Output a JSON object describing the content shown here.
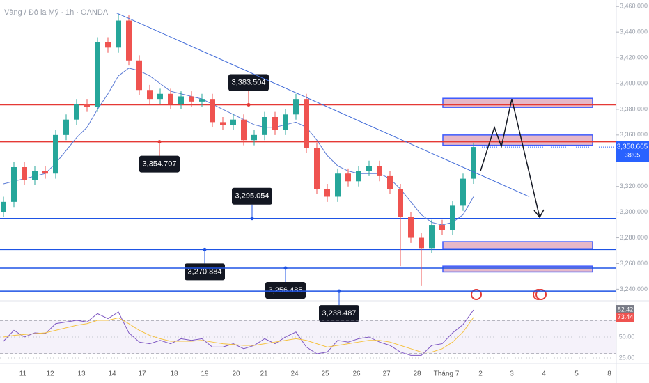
{
  "chart_data": {
    "type": "candlestick",
    "title": "Vàng / Đô la Mỹ · 1h · OANDA",
    "x_labels": [
      "11",
      "12",
      "13",
      "14",
      "17",
      "18",
      "19",
      "20",
      "21",
      "24",
      "25",
      "26",
      "27",
      "28",
      "Tháng 7",
      "2",
      "3",
      "4",
      "5",
      "8"
    ],
    "open": [
      3300,
      3308,
      3335,
      3325,
      3332,
      3330,
      3360,
      3372,
      3384,
      3382,
      3432,
      3428,
      3449,
      3418,
      3395,
      3388,
      3392,
      3384,
      3390,
      3386,
      3388,
      3370,
      3368,
      3372,
      3356,
      3360,
      3374,
      3364,
      3376,
      3388,
      3350,
      3318,
      3312,
      3330,
      3324,
      3332,
      3336,
      3328,
      3318,
      3296,
      3280,
      3272,
      3290,
      3286,
      3305,
      3326
    ],
    "high": [
      3312,
      3339,
      3339,
      3336,
      3336,
      3364,
      3376,
      3388,
      3388,
      3436,
      3436,
      3454,
      3453,
      3422,
      3399,
      3396,
      3396,
      3394,
      3394,
      3392,
      3392,
      3374,
      3376,
      3376,
      3364,
      3378,
      3378,
      3380,
      3392,
      3392,
      3354,
      3322,
      3334,
      3334,
      3336,
      3340,
      3340,
      3332,
      3322,
      3300,
      3284,
      3294,
      3294,
      3309,
      3330,
      3354
    ],
    "low": [
      3296,
      3304,
      3321,
      3321,
      3326,
      3326,
      3356,
      3368,
      3378,
      3378,
      3424,
      3424,
      3414,
      3391,
      3384,
      3384,
      3380,
      3380,
      3382,
      3382,
      3366,
      3364,
      3364,
      3352,
      3352,
      3356,
      3360,
      3360,
      3372,
      3346,
      3314,
      3308,
      3308,
      3320,
      3320,
      3328,
      3324,
      3314,
      3258,
      3276,
      3243,
      3268,
      3282,
      3282,
      3301,
      3322
    ],
    "close": [
      3308,
      3335,
      3325,
      3332,
      3330,
      3360,
      3372,
      3384,
      3382,
      3432,
      3428,
      3449,
      3418,
      3395,
      3388,
      3392,
      3384,
      3390,
      3386,
      3388,
      3370,
      3368,
      3372,
      3356,
      3360,
      3374,
      3364,
      3376,
      3388,
      3350,
      3318,
      3312,
      3330,
      3324,
      3332,
      3336,
      3328,
      3318,
      3296,
      3280,
      3272,
      3290,
      3286,
      3305,
      3326,
      3350.665
    ],
    "up_color": "#26a69a",
    "down_color": "#ef5350",
    "moving_average": [
      3322,
      3324,
      3326,
      3328,
      3330,
      3338,
      3348,
      3358,
      3366,
      3380,
      3392,
      3406,
      3412,
      3410,
      3406,
      3400,
      3394,
      3392,
      3390,
      3388,
      3384,
      3380,
      3376,
      3372,
      3368,
      3366,
      3366,
      3368,
      3370,
      3366,
      3356,
      3344,
      3336,
      3332,
      3330,
      3330,
      3330,
      3326,
      3318,
      3308,
      3298,
      3292,
      3290,
      3292,
      3298,
      3312
    ],
    "ma_color": "#5b7bd5",
    "ylim": [
      3231,
      3465
    ],
    "yticks": [
      {
        "value": 3460,
        "label": "3,460.000"
      },
      {
        "value": 3440,
        "label": "3,440.000"
      },
      {
        "value": 3420,
        "label": "3,420.000"
      },
      {
        "value": 3400,
        "label": "3,400.000"
      },
      {
        "value": 3380,
        "label": "3,380.000"
      },
      {
        "value": 3360,
        "label": "3,360.000"
      },
      {
        "value": 3320,
        "label": "3,320.000"
      },
      {
        "value": 3300,
        "label": "3,300.000"
      },
      {
        "value": 3280,
        "label": "3,280.000"
      },
      {
        "value": 3260,
        "label": "3,260.000"
      },
      {
        "value": 3240,
        "label": "3,240.000"
      }
    ],
    "grid": false,
    "last_price": {
      "value": 3350.665,
      "label": "3,350.665",
      "countdown": "38:05",
      "color": "#2962ff"
    },
    "levels": [
      {
        "value": 3383.504,
        "label": "3,383.504",
        "color": "#e53935"
      },
      {
        "value": 3354.707,
        "label": "3,354.707",
        "color": "#e53935"
      },
      {
        "value": 3295.054,
        "label": "3,295.054",
        "color": "#1e53e5"
      },
      {
        "value": 3270.884,
        "label": "3,270.884",
        "color": "#1e53e5"
      },
      {
        "value": 3256.485,
        "label": "3,256.485",
        "color": "#1e53e5"
      },
      {
        "value": 3238.487,
        "label": "3,238.487",
        "color": "#1e53e5"
      }
    ],
    "zones": [
      {
        "low": 3381.5,
        "high": 3388.5
      },
      {
        "low": 3352,
        "high": 3360
      },
      {
        "low": 3271.5,
        "high": 3277
      },
      {
        "low": 3253.5,
        "high": 3258
      }
    ],
    "zone_color": "#e6b8c8",
    "trendline": [
      3455,
      3312
    ],
    "projection": [
      3332,
      3366,
      3351,
      3388,
      3296
    ],
    "rsi": {
      "values": [
        45,
        58,
        50,
        55,
        54,
        66,
        68,
        70,
        68,
        78,
        72,
        80,
        55,
        44,
        42,
        46,
        42,
        48,
        46,
        48,
        38,
        38,
        42,
        36,
        40,
        48,
        42,
        50,
        56,
        38,
        30,
        32,
        46,
        44,
        48,
        50,
        44,
        40,
        32,
        28,
        28,
        40,
        42,
        55,
        65,
        82.42
      ],
      "ma": [
        50,
        52,
        53,
        54,
        55,
        58,
        61,
        64,
        66,
        70,
        70,
        73,
        66,
        58,
        52,
        48,
        45,
        45,
        45,
        46,
        44,
        42,
        41,
        40,
        40,
        42,
        44,
        46,
        48,
        46,
        42,
        38,
        40,
        42,
        44,
        46,
        46,
        44,
        40,
        36,
        32,
        32,
        36,
        44,
        56,
        73.44
      ],
      "color": "#7e57c2",
      "ma_color": "#f5c242",
      "ylim": [
        20,
        88.3
      ],
      "bands": [
        70,
        30
      ],
      "yticks": [
        {
          "value": 50,
          "label": "50.00"
        },
        {
          "value": 25,
          "label": "25.00"
        }
      ],
      "last": {
        "value": 82.42,
        "label": "82.42"
      },
      "last_ma": {
        "value": 73.44,
        "label": "73.44"
      }
    }
  }
}
